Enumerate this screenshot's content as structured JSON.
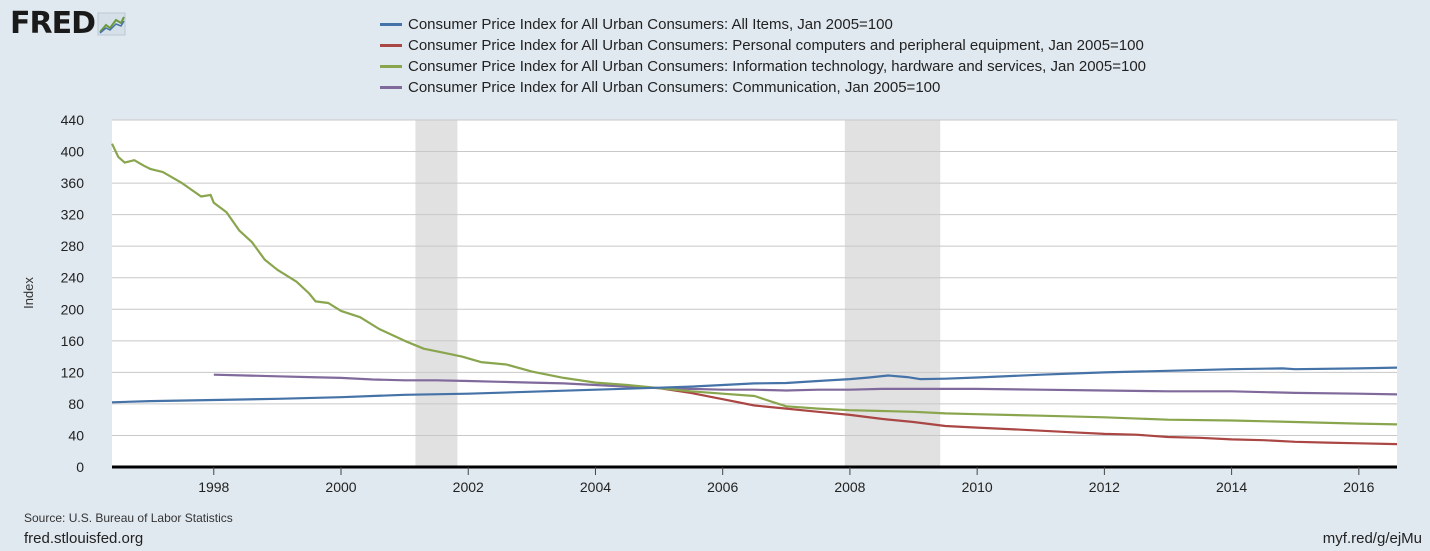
{
  "logo": {
    "text": "FRED",
    "icon": "line-chart-icon"
  },
  "legend": [
    {
      "label": "Consumer Price Index for All Urban Consumers: All Items, Jan 2005=100",
      "color": "#4572a7"
    },
    {
      "label": "Consumer Price Index for All Urban Consumers: Personal computers and peripheral equipment, Jan 2005=100",
      "color": "#aa4643"
    },
    {
      "label": "Consumer Price Index for All Urban Consumers: Information technology, hardware and services, Jan 2005=100",
      "color": "#89a54e"
    },
    {
      "label": "Consumer Price Index for All Urban Consumers: Communication, Jan 2005=100",
      "color": "#80699b"
    }
  ],
  "footer": {
    "source": "Source: U.S. Bureau of Labor Statistics",
    "site": "fred.stlouisfed.org",
    "short_link": "myf.red/g/ejMu"
  },
  "chart_data": {
    "type": "line",
    "title": "",
    "xlabel": "",
    "ylabel": "Index",
    "xlim": [
      1996.4,
      2016.6
    ],
    "ylim": [
      0,
      440
    ],
    "yticks": [
      0,
      40,
      80,
      120,
      160,
      200,
      240,
      280,
      320,
      360,
      400,
      440
    ],
    "xticks": [
      1998,
      2000,
      2002,
      2004,
      2006,
      2008,
      2010,
      2012,
      2014,
      2016
    ],
    "grid": true,
    "recessions": [
      [
        2001.17,
        2001.83
      ],
      [
        2007.92,
        2009.42
      ]
    ],
    "series": [
      {
        "name": "Consumer Price Index for All Urban Consumers: All Items, Jan 2005=100",
        "color": "#4572a7",
        "x": [
          1996.4,
          1997,
          1998,
          1999,
          2000,
          2001,
          2002,
          2003,
          2004,
          2005,
          2005.5,
          2006,
          2006.5,
          2007,
          2007.5,
          2008,
          2008.3,
          2008.6,
          2008.9,
          2009.1,
          2009.5,
          2010,
          2011,
          2012,
          2013,
          2014,
          2014.8,
          2015,
          2016,
          2016.6
        ],
        "y": [
          82,
          83.5,
          85,
          86.5,
          88.5,
          91.5,
          93,
          95.5,
          98,
          100.5,
          102,
          104,
          106,
          106.5,
          109,
          111.5,
          113.5,
          116,
          114,
          111.5,
          112,
          113.5,
          117,
          120,
          122,
          124,
          125,
          124,
          125,
          126
        ]
      },
      {
        "name": "Consumer Price Index for All Urban Consumers: Personal computers and peripheral equipment, Jan 2005=100",
        "color": "#aa4643",
        "x": [
          2005,
          2005.5,
          2006,
          2006.5,
          2007,
          2007.5,
          2008,
          2008.5,
          2009,
          2009.5,
          2010,
          2010.5,
          2011,
          2011.5,
          2012,
          2012.5,
          2013,
          2013.5,
          2014,
          2014.5,
          2015,
          2015.5,
          2016,
          2016.6
        ],
        "y": [
          100,
          94,
          86,
          78,
          74,
          70,
          66,
          61,
          57,
          52,
          50,
          48,
          46,
          44,
          42,
          41,
          38,
          37,
          35,
          34,
          32,
          31,
          30,
          29
        ]
      },
      {
        "name": "Consumer Price Index for All Urban Consumers: Information technology, hardware and services, Jan 2005=100",
        "color": "#89a54e",
        "x": [
          1996.4,
          1996.5,
          1996.6,
          1996.75,
          1996.9,
          1997,
          1997.2,
          1997.5,
          1997.8,
          1997.95,
          1998,
          1998.2,
          1998.4,
          1998.6,
          1998.8,
          1999,
          1999.3,
          1999.5,
          1999.6,
          1999.8,
          2000,
          2000.3,
          2000.6,
          2001,
          2001.3,
          2001.6,
          2001.9,
          2002.2,
          2002.6,
          2003,
          2003.5,
          2004,
          2004.5,
          2005,
          2005.5,
          2006,
          2006.5,
          2006.8,
          2007,
          2007.5,
          2008,
          2008.5,
          2009,
          2009.5,
          2010,
          2011,
          2012,
          2013,
          2014,
          2015,
          2016,
          2016.6
        ],
        "y": [
          410,
          393,
          386,
          389,
          382,
          378,
          374,
          360,
          343,
          345,
          335,
          323,
          300,
          285,
          263,
          250,
          235,
          220,
          210,
          208,
          198,
          190,
          175,
          160,
          150,
          145,
          140,
          133,
          130,
          121,
          113,
          107,
          104,
          100,
          96,
          93,
          90,
          82,
          77,
          74,
          72,
          71,
          70,
          68,
          67,
          65,
          63,
          60,
          59,
          57,
          55,
          54
        ]
      },
      {
        "name": "Consumer Price Index for All Urban Consumers: Communication, Jan 2005=100",
        "color": "#80699b",
        "x": [
          1998,
          1998.5,
          1999,
          1999.5,
          2000,
          2000.5,
          2001,
          2001.5,
          2002,
          2002.5,
          2003,
          2003.5,
          2004,
          2004.5,
          2005,
          2005.5,
          2006,
          2006.5,
          2007,
          2007.5,
          2008,
          2008.5,
          2009,
          2010,
          2011,
          2012,
          2013,
          2014,
          2015,
          2016,
          2016.6
        ],
        "y": [
          117,
          116,
          115,
          114,
          113,
          111,
          110,
          110,
          109,
          108,
          107,
          106,
          104,
          102,
          100,
          99,
          98,
          98,
          97,
          98,
          98,
          99,
          99,
          99,
          98,
          97,
          96,
          96,
          94,
          93,
          92
        ]
      }
    ]
  }
}
